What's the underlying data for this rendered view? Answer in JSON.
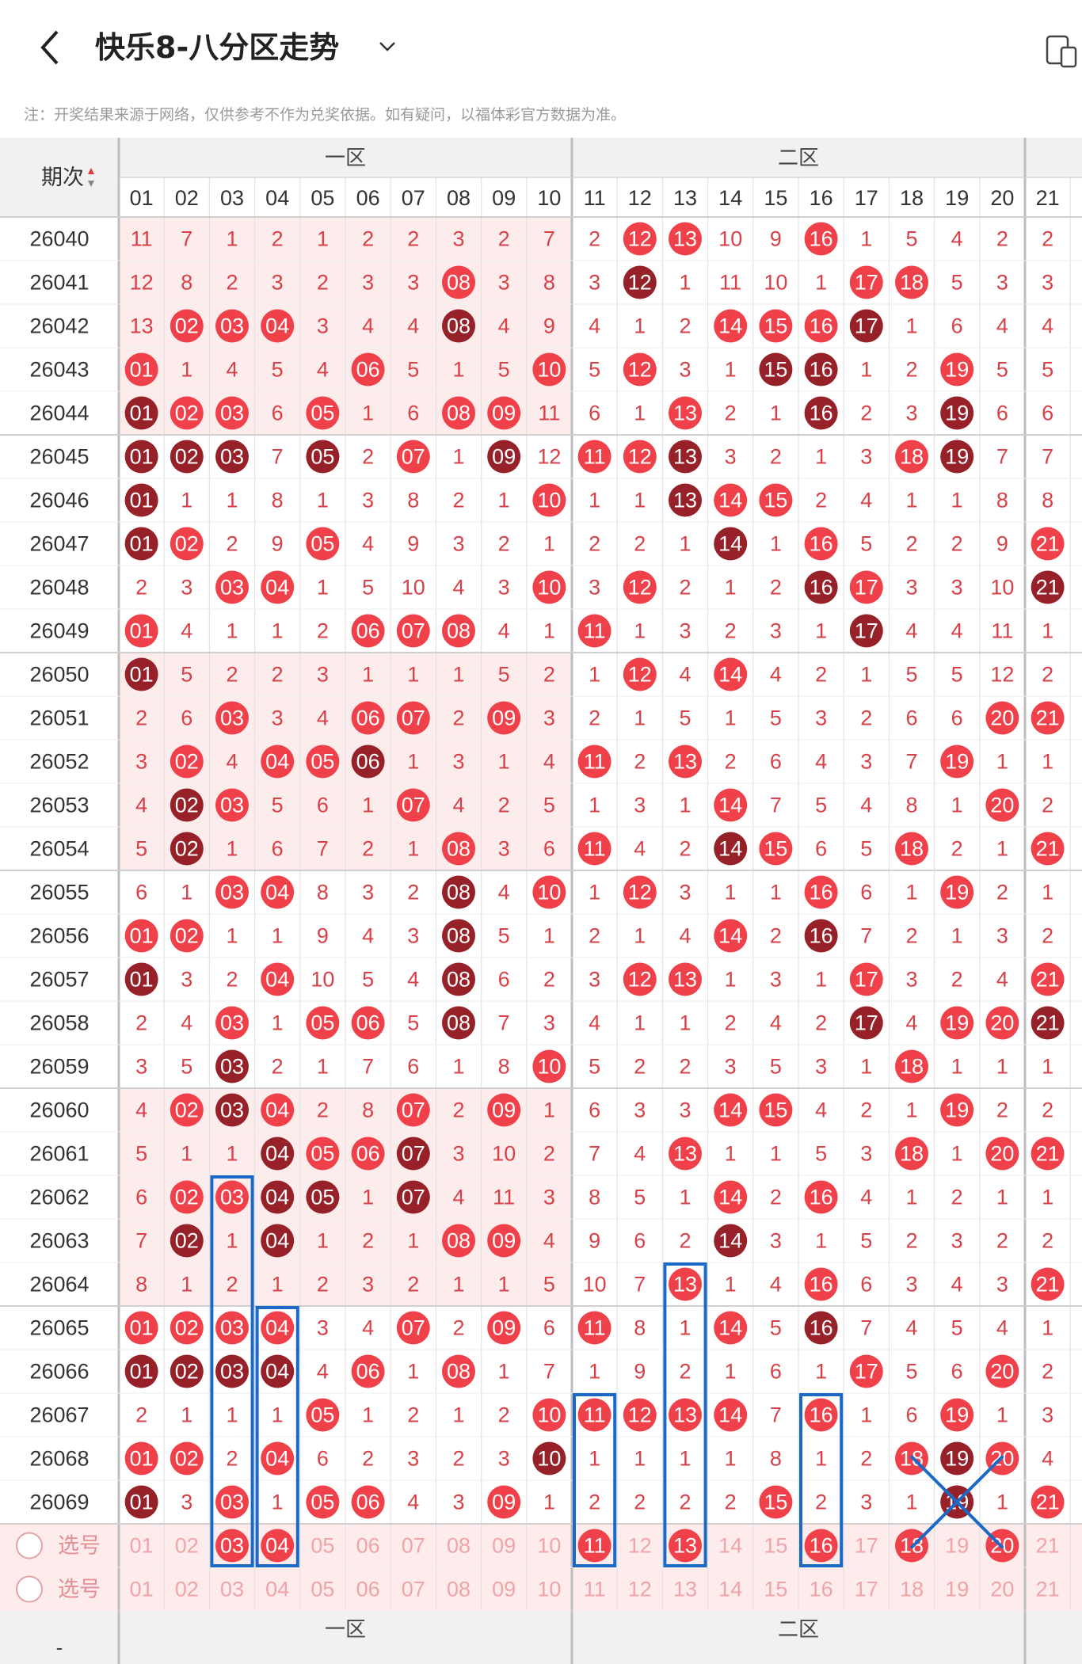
{
  "header": {
    "title": "快乐8-八分区走势",
    "back_icon": "back-arrow-icon",
    "dropdown_icon": "chevron-down-icon",
    "device_icon": "device-switch-icon"
  },
  "notice": "注：开奖结果来源于网络，仅供参考不作为兑奖依据。如有疑问，以福体彩官方数据为准。",
  "table": {
    "period_header": "期次",
    "zones": [
      "一区",
      "二区"
    ],
    "columns": [
      "01",
      "02",
      "03",
      "04",
      "05",
      "06",
      "07",
      "08",
      "09",
      "10",
      "11",
      "12",
      "13",
      "14",
      "15",
      "16",
      "17",
      "18",
      "19",
      "20",
      "21"
    ],
    "rows": [
      {
        "p": "26040",
        "v": [
          11,
          7,
          1,
          2,
          1,
          2,
          2,
          3,
          2,
          7,
          2,
          12,
          13,
          10,
          9,
          16,
          1,
          5,
          4,
          2,
          2
        ]
      },
      {
        "p": "26041",
        "v": [
          12,
          8,
          2,
          3,
          2,
          3,
          3,
          8,
          3,
          8,
          3,
          12,
          1,
          11,
          10,
          1,
          17,
          18,
          5,
          3,
          3
        ]
      },
      {
        "p": "26042",
        "v": [
          13,
          2,
          3,
          4,
          3,
          4,
          4,
          8,
          4,
          9,
          4,
          1,
          2,
          14,
          15,
          16,
          17,
          1,
          6,
          4,
          4
        ]
      },
      {
        "p": "26043",
        "v": [
          1,
          1,
          4,
          5,
          4,
          6,
          5,
          1,
          5,
          10,
          5,
          12,
          3,
          1,
          15,
          16,
          1,
          2,
          19,
          5,
          5
        ]
      },
      {
        "p": "26044",
        "v": [
          1,
          2,
          3,
          6,
          5,
          1,
          6,
          8,
          9,
          11,
          6,
          1,
          13,
          2,
          1,
          16,
          2,
          3,
          19,
          6,
          6
        ]
      },
      {
        "p": "26045",
        "v": [
          1,
          2,
          3,
          7,
          5,
          2,
          7,
          1,
          9,
          12,
          11,
          12,
          13,
          3,
          2,
          1,
          3,
          18,
          19,
          7,
          7
        ]
      },
      {
        "p": "26046",
        "v": [
          1,
          1,
          1,
          8,
          1,
          3,
          8,
          2,
          1,
          10,
          1,
          1,
          13,
          14,
          15,
          2,
          4,
          1,
          1,
          8,
          8
        ]
      },
      {
        "p": "26047",
        "v": [
          1,
          2,
          2,
          9,
          5,
          4,
          9,
          3,
          2,
          1,
          2,
          2,
          1,
          14,
          1,
          16,
          5,
          2,
          2,
          9,
          21
        ]
      },
      {
        "p": "26048",
        "v": [
          2,
          3,
          3,
          4,
          1,
          5,
          10,
          4,
          3,
          10,
          3,
          12,
          2,
          1,
          2,
          16,
          17,
          3,
          3,
          10,
          21
        ]
      },
      {
        "p": "26049",
        "v": [
          1,
          4,
          1,
          1,
          2,
          6,
          7,
          8,
          4,
          1,
          11,
          1,
          3,
          2,
          3,
          1,
          17,
          4,
          4,
          11,
          1
        ]
      },
      {
        "p": "26050",
        "v": [
          1,
          5,
          2,
          2,
          3,
          1,
          1,
          1,
          5,
          2,
          1,
          12,
          4,
          14,
          4,
          2,
          1,
          5,
          5,
          12,
          2
        ]
      },
      {
        "p": "26051",
        "v": [
          2,
          6,
          3,
          3,
          4,
          6,
          7,
          2,
          9,
          3,
          2,
          1,
          5,
          1,
          5,
          3,
          2,
          6,
          6,
          20,
          21
        ]
      },
      {
        "p": "26052",
        "v": [
          3,
          2,
          4,
          4,
          5,
          6,
          1,
          3,
          1,
          4,
          11,
          2,
          13,
          2,
          6,
          4,
          3,
          7,
          19,
          1,
          1
        ]
      },
      {
        "p": "26053",
        "v": [
          4,
          2,
          3,
          5,
          6,
          1,
          7,
          4,
          2,
          5,
          1,
          3,
          1,
          14,
          7,
          5,
          4,
          8,
          1,
          20,
          2
        ]
      },
      {
        "p": "26054",
        "v": [
          5,
          2,
          1,
          6,
          7,
          2,
          1,
          8,
          3,
          6,
          11,
          4,
          2,
          14,
          15,
          6,
          5,
          18,
          2,
          1,
          21
        ]
      },
      {
        "p": "26055",
        "v": [
          6,
          1,
          3,
          4,
          8,
          3,
          2,
          8,
          4,
          10,
          1,
          12,
          3,
          1,
          1,
          16,
          6,
          1,
          19,
          2,
          1
        ]
      },
      {
        "p": "26056",
        "v": [
          1,
          2,
          1,
          1,
          9,
          4,
          3,
          8,
          5,
          1,
          2,
          1,
          4,
          14,
          2,
          16,
          7,
          2,
          1,
          3,
          2
        ]
      },
      {
        "p": "26057",
        "v": [
          1,
          3,
          2,
          4,
          10,
          5,
          4,
          8,
          6,
          2,
          3,
          12,
          13,
          1,
          3,
          1,
          17,
          3,
          2,
          4,
          21
        ]
      },
      {
        "p": "26058",
        "v": [
          2,
          4,
          3,
          1,
          5,
          6,
          5,
          8,
          7,
          3,
          4,
          1,
          1,
          2,
          4,
          2,
          17,
          4,
          19,
          20,
          21
        ]
      },
      {
        "p": "26059",
        "v": [
          3,
          5,
          3,
          2,
          1,
          7,
          6,
          1,
          8,
          10,
          5,
          2,
          2,
          3,
          5,
          3,
          1,
          18,
          1,
          1,
          1
        ]
      },
      {
        "p": "26060",
        "v": [
          4,
          2,
          3,
          4,
          2,
          8,
          7,
          2,
          9,
          1,
          6,
          3,
          3,
          14,
          15,
          4,
          2,
          1,
          19,
          2,
          2
        ]
      },
      {
        "p": "26061",
        "v": [
          5,
          1,
          1,
          4,
          5,
          6,
          7,
          3,
          10,
          2,
          7,
          4,
          13,
          1,
          1,
          5,
          3,
          18,
          1,
          20,
          21
        ]
      },
      {
        "p": "26062",
        "v": [
          6,
          2,
          3,
          4,
          5,
          1,
          7,
          4,
          11,
          3,
          8,
          5,
          1,
          14,
          2,
          16,
          4,
          1,
          2,
          1,
          1
        ]
      },
      {
        "p": "26063",
        "v": [
          7,
          2,
          1,
          4,
          1,
          2,
          1,
          8,
          9,
          4,
          9,
          6,
          2,
          14,
          3,
          1,
          5,
          2,
          3,
          2,
          2
        ]
      },
      {
        "p": "26064",
        "v": [
          8,
          1,
          2,
          1,
          2,
          3,
          2,
          1,
          1,
          5,
          10,
          7,
          13,
          1,
          4,
          16,
          6,
          3,
          4,
          3,
          21
        ]
      },
      {
        "p": "26065",
        "v": [
          1,
          2,
          3,
          4,
          3,
          4,
          7,
          2,
          9,
          6,
          11,
          8,
          1,
          14,
          5,
          16,
          7,
          4,
          5,
          4,
          1
        ]
      },
      {
        "p": "26066",
        "v": [
          1,
          2,
          3,
          4,
          4,
          6,
          1,
          8,
          1,
          7,
          1,
          9,
          2,
          1,
          6,
          1,
          17,
          5,
          6,
          20,
          2
        ]
      },
      {
        "p": "26067",
        "v": [
          2,
          1,
          1,
          1,
          5,
          1,
          2,
          1,
          2,
          10,
          11,
          12,
          13,
          14,
          7,
          16,
          1,
          6,
          19,
          1,
          3
        ]
      },
      {
        "p": "26068",
        "v": [
          1,
          2,
          2,
          4,
          6,
          2,
          3,
          2,
          3,
          10,
          1,
          1,
          1,
          1,
          8,
          1,
          2,
          18,
          19,
          20,
          4
        ]
      },
      {
        "p": "26069",
        "v": [
          1,
          3,
          3,
          1,
          5,
          6,
          4,
          3,
          9,
          1,
          2,
          2,
          2,
          2,
          15,
          2,
          3,
          1,
          19,
          1,
          21
        ]
      }
    ],
    "select_rows": [
      {
        "label": "选号",
        "picked": [
          "03",
          "04",
          "11",
          "13",
          "16",
          "18",
          "20"
        ]
      },
      {
        "label": "选号",
        "picked": []
      }
    ],
    "footer_zones": [
      "一区",
      "二区"
    ],
    "footer_period_mark": "-",
    "sort_icon": "sort-arrows-icon",
    "radio_icon": "radio-circle-icon",
    "annotations": [
      "highlight-box-03",
      "highlight-box-04",
      "highlight-box-11",
      "highlight-box-13",
      "highlight-box-16",
      "cross-mark-19"
    ]
  },
  "colors": {
    "red": "#f0414a",
    "dark_red": "#962129",
    "text_red": "#d94048",
    "grid": "#e2e2e2",
    "pink_row": "#fdecec",
    "header_bg": "#f1f1f1",
    "blue": "#1a69c6"
  }
}
